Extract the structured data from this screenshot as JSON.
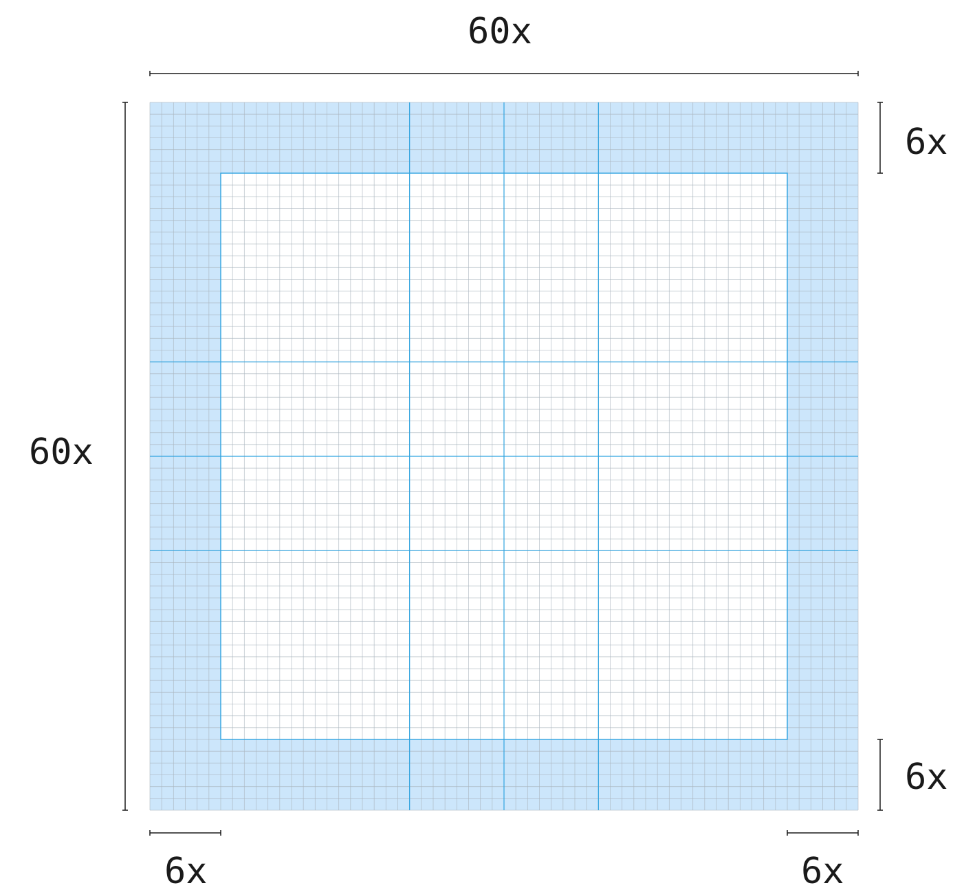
{
  "dimensions": {
    "total_width": "60x",
    "total_height": "60x",
    "margin_top": "6x",
    "margin_bottom": "6x",
    "margin_left": "6x",
    "margin_right": "6x"
  },
  "grid": {
    "total_units": 60,
    "margin_units": 6,
    "major_column_edges_units": [
      22,
      30,
      38
    ],
    "major_row_edges_units": [
      22,
      30,
      38
    ]
  },
  "colors": {
    "margin_fill": "#cce6fb",
    "content_fill": "#ffffff",
    "minor_grid_line": "#a9b4bd",
    "major_line": "#2fa3e0",
    "dimension_line": "#1a1a1a",
    "text": "#1a1a1a"
  }
}
